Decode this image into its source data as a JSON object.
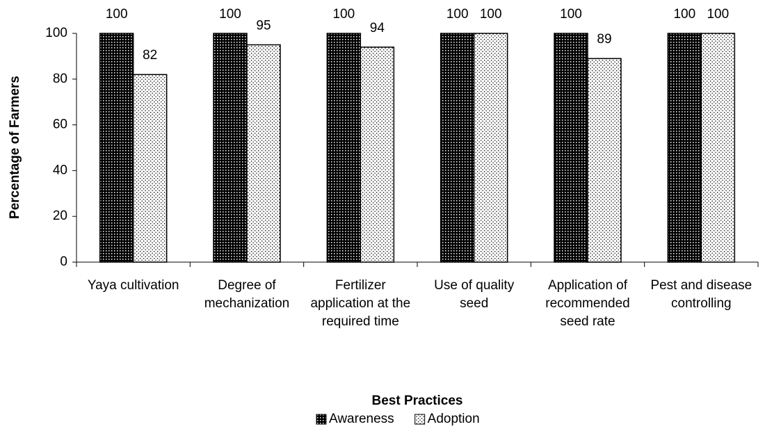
{
  "chart_data": {
    "type": "bar",
    "x_label": "Best Practices",
    "y_label": "Percentage of Farmers",
    "categories": [
      "Yaya cultivation",
      "Degree of mechanization",
      "Fertilizer application at the required time",
      "Use of quality seed",
      "Application of recommended seed rate",
      "Pest and disease controlling"
    ],
    "series": [
      {
        "name": "Awareness",
        "color": "#000000",
        "values": [
          100,
          100,
          100,
          100,
          100,
          100
        ]
      },
      {
        "name": "Adoption",
        "color": "#ffffff",
        "values": [
          82,
          95,
          94,
          100,
          89,
          100
        ]
      }
    ],
    "ylim": [
      0,
      100
    ],
    "yticks": [
      0,
      20,
      40,
      60,
      80,
      100
    ],
    "legend": "bottom"
  }
}
